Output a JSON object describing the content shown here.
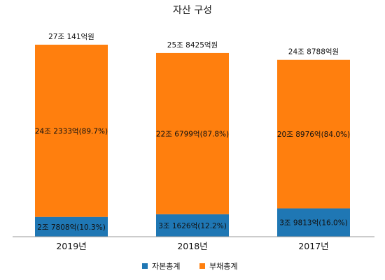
{
  "chart_data": {
    "type": "bar",
    "stacked": true,
    "title": "자산 구성",
    "categories": [
      "2019년",
      "2018년",
      "2017년"
    ],
    "totals": [
      "27조 141억원",
      "25조 8425억원",
      "24조 8788억원"
    ],
    "total_values": [
      270141,
      258425,
      248788
    ],
    "series": [
      {
        "name": "자본총계",
        "color": "#1f77b4",
        "values": [
          27808,
          31626,
          39813
        ],
        "labels": [
          "2조 7808억(10.3%)",
          "3조 1626억(12.2%)",
          "3조 9813억(16.0%)"
        ]
      },
      {
        "name": "부채총계",
        "color": "#ff7f0e",
        "values": [
          242333,
          226799,
          208976
        ],
        "labels": [
          "24조 2333억(89.7%)",
          "22조 6799억(87.8%)",
          "20조 8976억(84.0%)"
        ]
      }
    ],
    "ylim": [
      0,
      270141
    ],
    "grid": false,
    "legend": "bottom"
  }
}
